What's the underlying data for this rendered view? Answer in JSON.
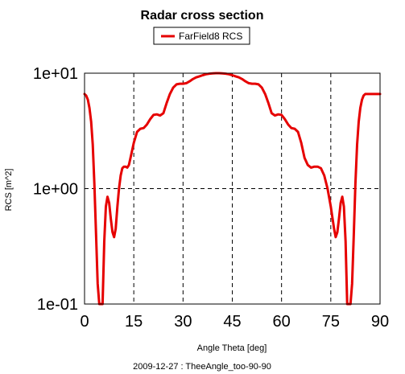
{
  "chart_data": {
    "type": "line",
    "title": "Radar cross section",
    "xlabel": "Angle Theta [deg]",
    "ylabel": "RCS [m^2]",
    "footer": "2009-12-27 : TheeAngle_too-90-90",
    "xlim": [
      0,
      90
    ],
    "ylim": [
      0.1,
      10
    ],
    "y_scale": "log",
    "x_ticks": [
      0,
      15,
      30,
      45,
      60,
      75,
      90
    ],
    "x_tick_labels": [
      "0",
      "15",
      "30",
      "45",
      "60",
      "75",
      "90"
    ],
    "y_ticks": [
      0.1,
      1,
      10
    ],
    "y_tick_labels": [
      "1e-01",
      "1e+00",
      "1e+01"
    ],
    "grid": "dashed",
    "legend_position": "top-center",
    "series": [
      {
        "name": "FarField8 RCS",
        "color": "#e60000",
        "x": [
          0,
          0.5,
          1,
          1.5,
          2,
          2.5,
          3,
          3.5,
          4,
          4.5,
          5,
          5.5,
          6,
          6.5,
          7,
          7.5,
          8,
          8.5,
          9,
          9.5,
          10,
          10.5,
          11,
          11.5,
          12,
          12.5,
          13,
          13.5,
          14,
          15,
          16,
          17,
          18,
          19,
          20,
          21,
          22,
          23,
          24,
          25,
          26,
          27,
          28,
          29,
          30,
          31,
          32,
          33,
          34,
          35,
          36,
          37,
          38,
          39,
          40,
          41,
          42,
          43,
          44,
          45,
          46,
          47,
          48,
          49,
          50,
          51,
          52,
          53,
          54,
          55,
          56,
          57,
          58,
          59,
          60,
          61,
          62,
          63,
          64,
          65,
          66,
          67,
          68,
          69,
          70,
          71,
          72,
          73,
          74,
          75,
          76,
          76.5,
          77,
          77.5,
          78,
          78.5,
          79,
          79.5,
          80,
          80.5,
          81,
          81.5,
          82,
          82.5,
          83,
          83.5,
          84,
          84.5,
          85,
          85.5,
          86,
          86.5,
          87,
          87.5,
          88,
          88.5,
          89,
          89.5,
          90
        ],
        "y": [
          6.6,
          6.4,
          5.9,
          5.0,
          3.8,
          2.4,
          1.1,
          0.4,
          0.15,
          0.1,
          0.1,
          0.1,
          0.35,
          0.7,
          0.85,
          0.75,
          0.55,
          0.42,
          0.38,
          0.45,
          0.7,
          1.0,
          1.3,
          1.5,
          1.55,
          1.55,
          1.52,
          1.6,
          1.85,
          2.5,
          3.1,
          3.3,
          3.35,
          3.6,
          4.0,
          4.35,
          4.4,
          4.3,
          4.5,
          5.5,
          6.6,
          7.5,
          8.0,
          8.1,
          8.1,
          8.2,
          8.5,
          8.9,
          9.2,
          9.4,
          9.6,
          9.8,
          9.9,
          9.95,
          10.0,
          10.0,
          9.95,
          9.9,
          9.8,
          9.6,
          9.4,
          9.2,
          8.9,
          8.5,
          8.2,
          8.1,
          8.1,
          8.0,
          7.5,
          6.6,
          5.5,
          4.5,
          4.3,
          4.4,
          4.35,
          4.0,
          3.6,
          3.35,
          3.3,
          3.1,
          2.5,
          1.85,
          1.6,
          1.52,
          1.55,
          1.55,
          1.5,
          1.3,
          1.0,
          0.7,
          0.45,
          0.38,
          0.42,
          0.55,
          0.75,
          0.85,
          0.7,
          0.35,
          0.1,
          0.1,
          0.1,
          0.15,
          0.4,
          1.1,
          2.4,
          3.8,
          5.0,
          5.9,
          6.4,
          6.6,
          6.6,
          6.6,
          6.6,
          6.6,
          6.6,
          6.6,
          6.6,
          6.6,
          6.6
        ]
      }
    ]
  }
}
